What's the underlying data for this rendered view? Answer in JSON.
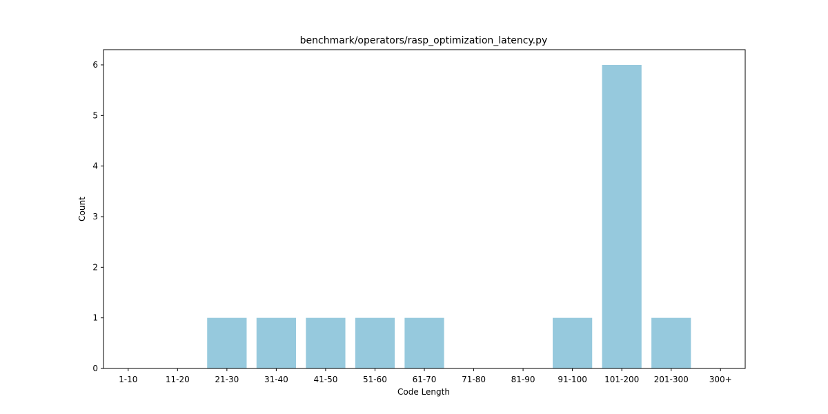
{
  "chart_data": {
    "type": "bar",
    "title": "benchmark/operators/rasp_optimization_latency.py",
    "xlabel": "Code Length",
    "ylabel": "Count",
    "categories": [
      "1-10",
      "11-20",
      "21-30",
      "31-40",
      "41-50",
      "51-60",
      "61-70",
      "71-80",
      "81-90",
      "91-100",
      "101-200",
      "201-300",
      "300+"
    ],
    "values": [
      0,
      0,
      1,
      1,
      1,
      1,
      1,
      0,
      0,
      1,
      6,
      1,
      0
    ],
    "ylim": [
      0,
      6.3
    ],
    "yticks": [
      0,
      1,
      2,
      3,
      4,
      5,
      6
    ],
    "bar_color": "#96c9dd",
    "grid": false,
    "legend": "none"
  }
}
